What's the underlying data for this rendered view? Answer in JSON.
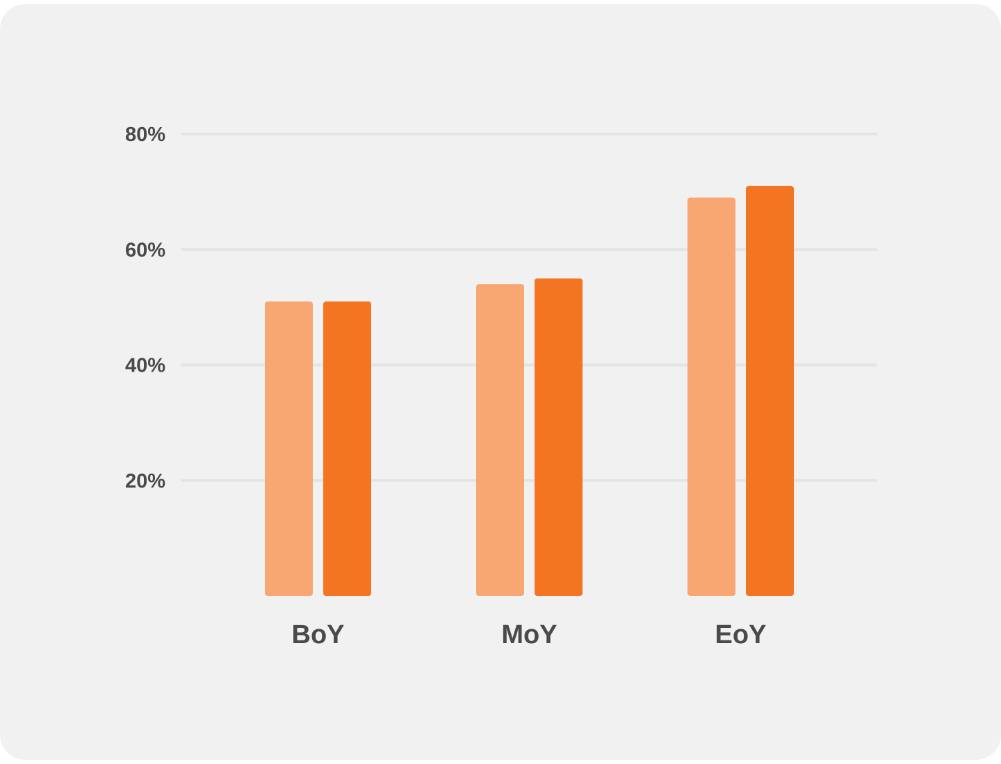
{
  "chart_data": {
    "type": "bar",
    "categories": [
      "BoY",
      "MoY",
      "EoY"
    ],
    "series": [
      {
        "values": [
          51,
          54,
          69
        ],
        "color": "#f8a672"
      },
      {
        "values": [
          51,
          55,
          71
        ],
        "color": "#f37522"
      }
    ],
    "yticks": [
      20,
      40,
      60,
      80
    ],
    "ytick_labels": [
      "20%",
      "40%",
      "60%",
      "80%"
    ],
    "ylim": [
      0,
      80
    ],
    "grid": true,
    "gridline_color": "#e3e4e3",
    "background": "#f0f1f0",
    "text_color": "#4a4a4a",
    "title": "",
    "xlabel": "",
    "ylabel": ""
  }
}
